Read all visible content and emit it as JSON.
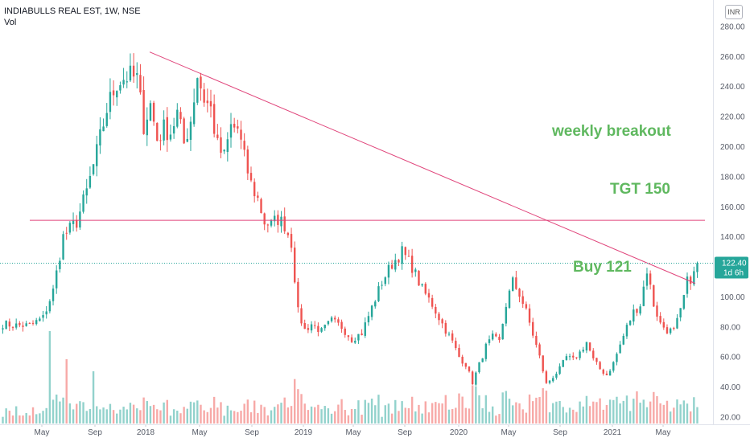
{
  "header": {
    "symbol": "INDIABULLS REAL EST, 1W, NSE",
    "volume_label": "Vol",
    "currency": "INR"
  },
  "price_tag": {
    "price": "122.40",
    "countdown": "1d 6h"
  },
  "colors": {
    "up": "#26a69a",
    "down": "#ef5350",
    "line": "#e0457b",
    "note": "#5fb85f",
    "tag": "#26a69a"
  },
  "annotations": {
    "breakout": "weekly breakout",
    "target": "TGT 150",
    "buy": "Buy 121"
  },
  "chart_data": {
    "type": "candlestick",
    "title": "INDIABULLS REAL EST, 1W, NSE",
    "ylim": [
      14,
      292
    ],
    "y_ticks": [
      20,
      40,
      60,
      80,
      100,
      120,
      140,
      160,
      180,
      200,
      220,
      240,
      260,
      280
    ],
    "y_tick_labels": [
      "20.00",
      "40.00",
      "60.00",
      "80.00",
      "100.00",
      "120.00",
      "140.00",
      "160.00",
      "180.00",
      "200.00",
      "220.00",
      "240.00",
      "260.00",
      "280.00"
    ],
    "x_ticks": [
      "May",
      "Sep",
      "2018",
      "May",
      "Sep",
      "2019",
      "May",
      "Sep",
      "2020",
      "May",
      "Sep",
      "2021",
      "May"
    ],
    "weeks": 208,
    "waypoints": [
      [
        0,
        82
      ],
      [
        4,
        81
      ],
      [
        8,
        81
      ],
      [
        12,
        86
      ],
      [
        15,
        104
      ],
      [
        18,
        140
      ],
      [
        22,
        150
      ],
      [
        25,
        170
      ],
      [
        28,
        196
      ],
      [
        31,
        225
      ],
      [
        34,
        243
      ],
      [
        37,
        247
      ],
      [
        40,
        245
      ],
      [
        42,
        215
      ],
      [
        44,
        228
      ],
      [
        46,
        205
      ],
      [
        48,
        212
      ],
      [
        50,
        210
      ],
      [
        52,
        222
      ],
      [
        54,
        202
      ],
      [
        56,
        218
      ],
      [
        58,
        248
      ],
      [
        60,
        232
      ],
      [
        62,
        225
      ],
      [
        64,
        200
      ],
      [
        66,
        193
      ],
      [
        68,
        213
      ],
      [
        70,
        212
      ],
      [
        72,
        192
      ],
      [
        74,
        175
      ],
      [
        76,
        165
      ],
      [
        78,
        150
      ],
      [
        80,
        148
      ],
      [
        82,
        152
      ],
      [
        84,
        148
      ],
      [
        86,
        136
      ],
      [
        88,
        90
      ],
      [
        90,
        78
      ],
      [
        92,
        82
      ],
      [
        95,
        77
      ],
      [
        98,
        84
      ],
      [
        101,
        80
      ],
      [
        104,
        72
      ],
      [
        107,
        76
      ],
      [
        110,
        93
      ],
      [
        113,
        110
      ],
      [
        116,
        122
      ],
      [
        119,
        130
      ],
      [
        122,
        120
      ],
      [
        125,
        105
      ],
      [
        128,
        95
      ],
      [
        131,
        82
      ],
      [
        134,
        70
      ],
      [
        136,
        60
      ],
      [
        138,
        55
      ],
      [
        140,
        43
      ],
      [
        142,
        55
      ],
      [
        144,
        67
      ],
      [
        146,
        73
      ],
      [
        148,
        70
      ],
      [
        150,
        95
      ],
      [
        152,
        110
      ],
      [
        154,
        102
      ],
      [
        156,
        90
      ],
      [
        158,
        75
      ],
      [
        160,
        60
      ],
      [
        162,
        42
      ],
      [
        164,
        47
      ],
      [
        166,
        52
      ],
      [
        168,
        60
      ],
      [
        170,
        58
      ],
      [
        172,
        63
      ],
      [
        174,
        70
      ],
      [
        176,
        58
      ],
      [
        178,
        52
      ],
      [
        180,
        48
      ],
      [
        182,
        56
      ],
      [
        184,
        68
      ],
      [
        186,
        80
      ],
      [
        188,
        90
      ],
      [
        190,
        95
      ],
      [
        192,
        118
      ],
      [
        194,
        95
      ],
      [
        196,
        82
      ],
      [
        198,
        78
      ],
      [
        200,
        77
      ],
      [
        202,
        90
      ],
      [
        204,
        110
      ],
      [
        206,
        115
      ],
      [
        207,
        122
      ]
    ],
    "lines": [
      {
        "type": "trendline",
        "from": [
          45,
          263
        ],
        "to": [
          215,
          109
        ]
      },
      {
        "type": "horizontal",
        "level": 151,
        "from_week": 9,
        "to_week": 214
      },
      {
        "type": "last-price",
        "level": 122.4
      }
    ],
    "last_price": 122.4
  }
}
